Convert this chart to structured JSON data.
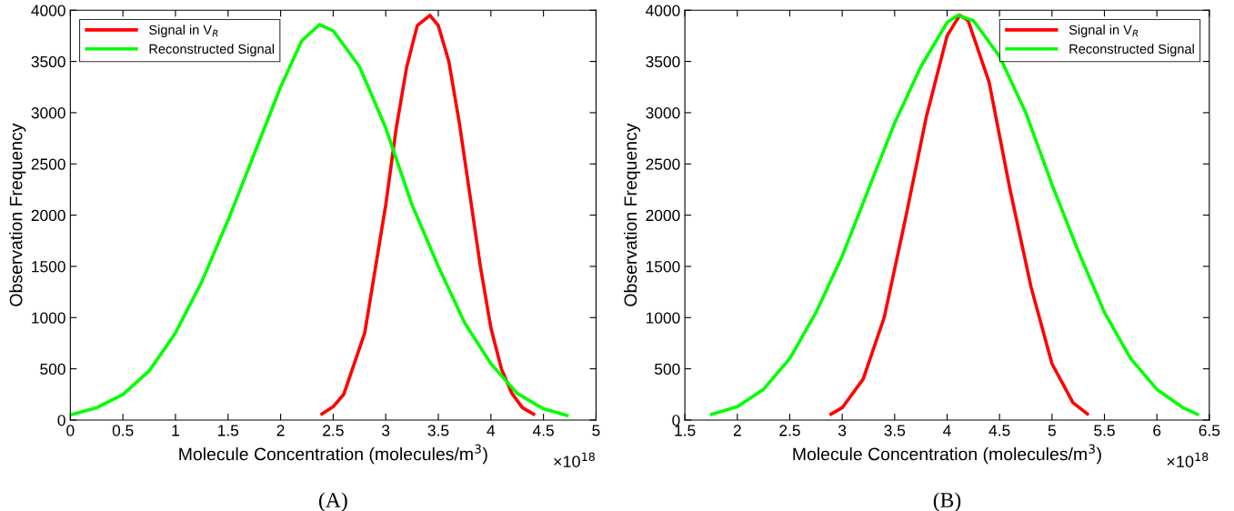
{
  "chart_data": [
    {
      "type": "line",
      "xlabel": "Molecule Concentration (molecules/m$^{3}$)",
      "ylabel": "Observation Frequency",
      "annotations": [
        "×10$^{18}$",
        "(A)"
      ],
      "xlim": [
        0,
        5
      ],
      "xticks": [
        0,
        0.5,
        1,
        1.5,
        2,
        2.5,
        3,
        3.5,
        4,
        4.5,
        5
      ],
      "ylim": [
        0,
        4000
      ],
      "yticks": [
        0,
        500,
        1000,
        1500,
        2000,
        2500,
        3000,
        3500,
        4000
      ],
      "grid": false,
      "legend": "top left",
      "marker": "none",
      "line_style": "solid",
      "series": [
        {
          "name": "Signal in V$_{R}$",
          "color": "#ff0000",
          "x": [
            2.38,
            2.5,
            2.6,
            2.8,
            3.0,
            3.1,
            3.2,
            3.3,
            3.42,
            3.5,
            3.6,
            3.7,
            3.8,
            3.9,
            4.0,
            4.1,
            4.2,
            4.3,
            4.42
          ],
          "values": [
            50,
            130,
            250,
            850,
            2100,
            2850,
            3450,
            3850,
            3950,
            3850,
            3500,
            2900,
            2200,
            1500,
            900,
            500,
            260,
            120,
            50
          ]
        },
        {
          "name": "Reconstructed Signal",
          "color": "#00ff00",
          "x": [
            0,
            0.25,
            0.5,
            0.75,
            1.0,
            1.25,
            1.5,
            1.75,
            2.0,
            2.2,
            2.37,
            2.5,
            2.75,
            3.0,
            3.1,
            3.25,
            3.5,
            3.75,
            4.0,
            4.25,
            4.5,
            4.74
          ],
          "values": [
            50,
            120,
            250,
            480,
            850,
            1350,
            1950,
            2600,
            3250,
            3700,
            3860,
            3800,
            3450,
            2850,
            2550,
            2100,
            1500,
            950,
            550,
            260,
            110,
            40
          ]
        }
      ]
    },
    {
      "type": "line",
      "xlabel": "Molecule Concentration (molecules/m$^{3}$)",
      "ylabel": "Observation Frequency",
      "annotations": [
        "×10$^{18}$",
        "(B)"
      ],
      "xlim": [
        1.5,
        6.5
      ],
      "xticks": [
        1.5,
        2,
        2.5,
        3,
        3.5,
        4,
        4.5,
        5,
        5.5,
        6,
        6.5
      ],
      "ylim": [
        0,
        4000
      ],
      "yticks": [
        0,
        500,
        1000,
        1500,
        2000,
        2500,
        3000,
        3500,
        4000
      ],
      "grid": false,
      "legend": "top right",
      "marker": "none",
      "line_style": "solid",
      "series": [
        {
          "name": "Signal in V$_{R}$",
          "color": "#ff0000",
          "x": [
            2.88,
            3.0,
            3.2,
            3.4,
            3.6,
            3.8,
            4.0,
            4.12,
            4.2,
            4.4,
            4.6,
            4.8,
            5.0,
            5.2,
            5.35
          ],
          "values": [
            50,
            120,
            400,
            1000,
            1950,
            2950,
            3750,
            3950,
            3900,
            3300,
            2250,
            1300,
            550,
            170,
            50
          ]
        },
        {
          "name": "Reconstructed Signal",
          "color": "#00ff00",
          "x": [
            1.74,
            2.0,
            2.25,
            2.5,
            2.75,
            3.0,
            3.25,
            3.5,
            3.75,
            4.0,
            4.1,
            4.25,
            4.5,
            4.75,
            5.0,
            5.25,
            5.5,
            5.75,
            6.0,
            6.25,
            6.4
          ],
          "values": [
            50,
            130,
            300,
            600,
            1050,
            1600,
            2250,
            2900,
            3450,
            3880,
            3950,
            3900,
            3550,
            3000,
            2300,
            1650,
            1050,
            600,
            300,
            120,
            50
          ]
        }
      ]
    }
  ]
}
